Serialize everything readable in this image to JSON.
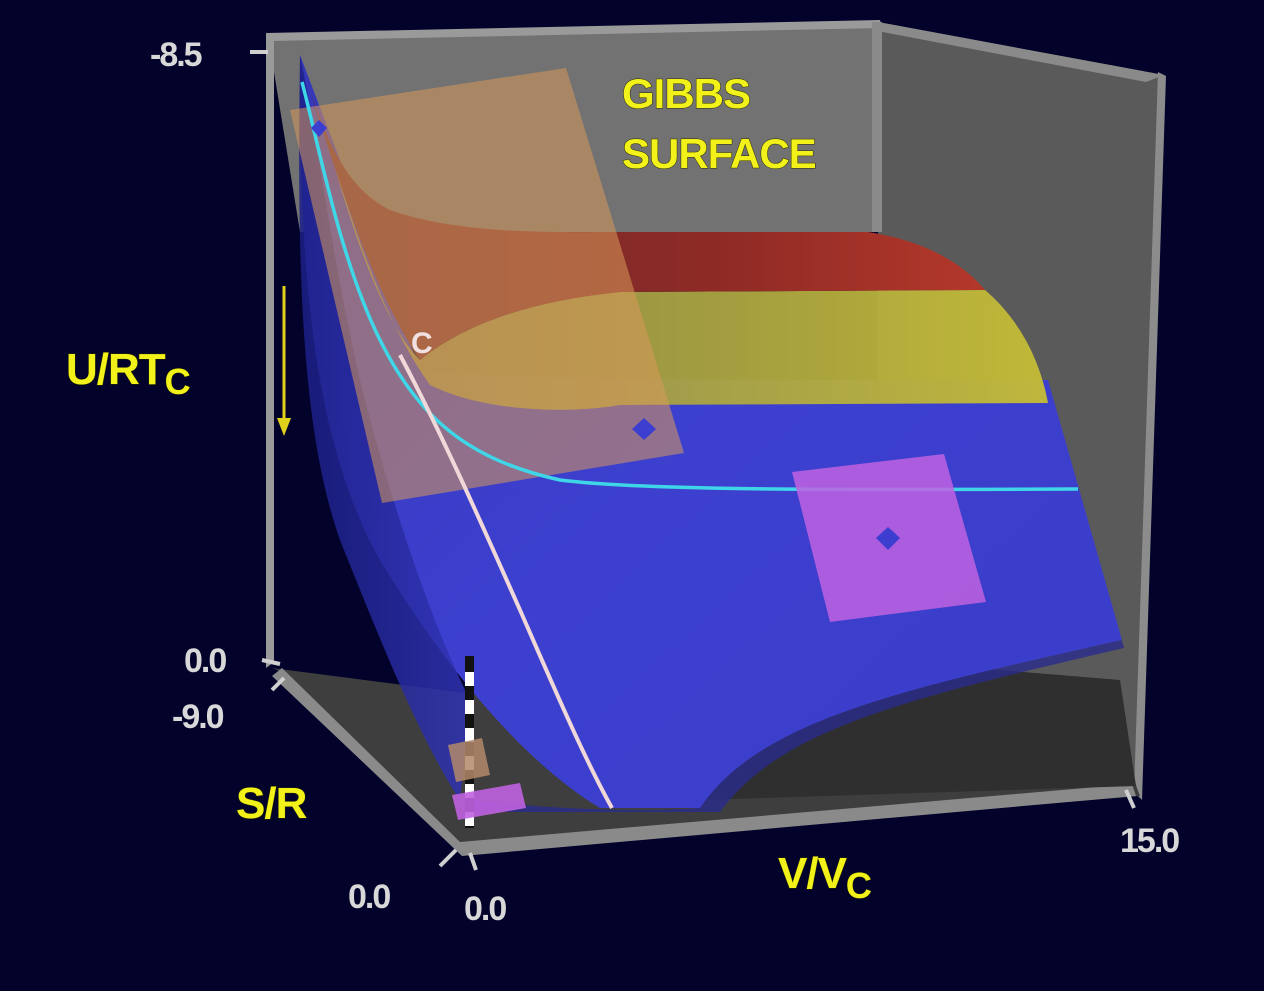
{
  "title": {
    "line1": "GIBBS",
    "line2": "SURFACE"
  },
  "axes": {
    "u": {
      "label_main": "U/RT",
      "label_sub": "C",
      "top_tick": "-8.5",
      "bottom_tick": "0.0"
    },
    "s": {
      "label": "S/R",
      "near_tick": "-9.0",
      "far_tick": "0.0"
    },
    "v": {
      "label_main": "V/V",
      "label_sub": "C",
      "start_tick": "0.0",
      "end_tick": "15.0"
    }
  },
  "markers": {
    "critical_point": "C"
  },
  "colors": {
    "background": "#02022a",
    "box_wall": "#6f6f6f",
    "surface_blue": "#3b3ecf",
    "band_red": "#a52a23",
    "band_yellow": "#b8b23a",
    "tangent_plane_orange": "#d9995a",
    "tangent_plane_violet": "#c062e0",
    "cyan_curve": "#3fd6e8",
    "white_curve": "#f0d8d8",
    "label_yellow": "#f2f21a"
  }
}
